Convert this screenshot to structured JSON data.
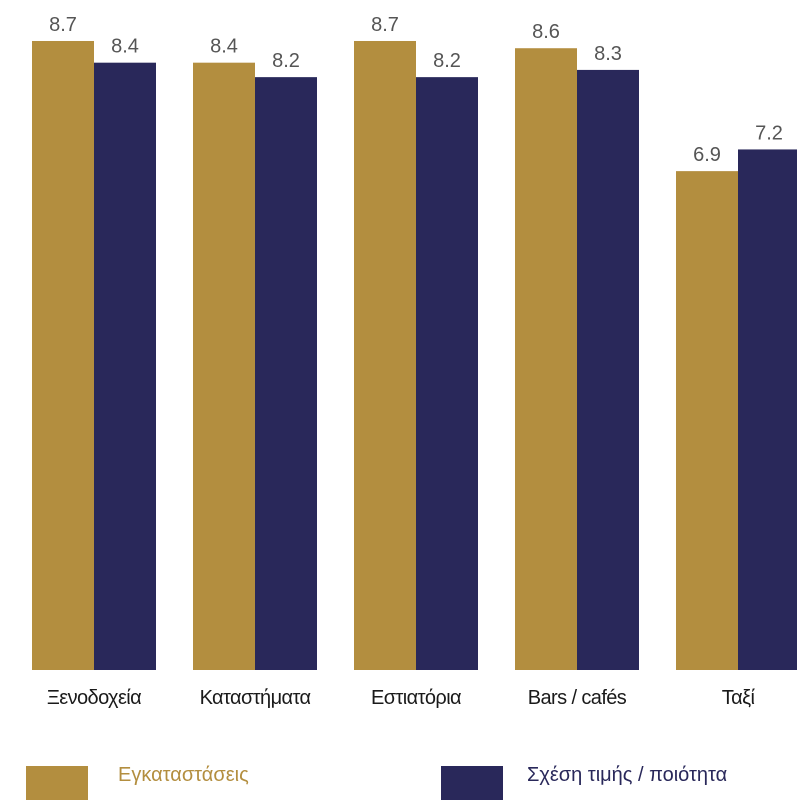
{
  "chart_data": {
    "type": "bar",
    "categories": [
      "Ξενοδοχεία",
      "Καταστήματα",
      "Εστιατόρια",
      "Bars / cafés",
      "Ταξί"
    ],
    "series": [
      {
        "name": "Εγκαταστάσεις",
        "values": [
          8.7,
          8.4,
          8.7,
          8.6,
          6.9
        ],
        "color": "#b38e3f"
      },
      {
        "name": "Σχέση τιμής / ποιότητα",
        "values": [
          8.4,
          8.2,
          8.2,
          8.3,
          7.2
        ],
        "color": "#29285a"
      }
    ],
    "value_labels": [
      [
        "8.7",
        "8.4",
        "8.7",
        "8.6",
        "6.9"
      ],
      [
        "8.4",
        "8.2",
        "8.2",
        "8.3",
        "7.2"
      ]
    ],
    "title": "",
    "xlabel": "",
    "ylabel": "",
    "ylim": [
      0,
      10
    ],
    "grid": false,
    "legend_position": "bottom"
  },
  "legend": {
    "items": [
      {
        "label": "Εγκαταστάσεις",
        "color": "#b38e3f",
        "text_color": "#b38e3f"
      },
      {
        "label": "Σχέση τιμής / ποιότητα",
        "color": "#29285a",
        "text_color": "#29285a"
      }
    ]
  }
}
